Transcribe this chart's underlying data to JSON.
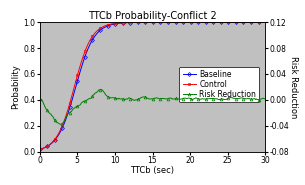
{
  "title": "TTCb Probability-Conflict 2",
  "xlabel": "TTCb (sec)",
  "ylabel_left": "Probability",
  "ylabel_right": "Risk Reduction",
  "xlim": [
    0,
    30
  ],
  "ylim_left": [
    0.0,
    1.0
  ],
  "ylim_right": [
    -0.08,
    0.12
  ],
  "yticks_left": [
    0.0,
    0.2,
    0.4,
    0.6,
    0.8,
    1.0
  ],
  "yticks_right": [
    -0.08,
    -0.04,
    0.0,
    0.04,
    0.08,
    0.12
  ],
  "xticks": [
    0,
    5,
    10,
    15,
    20,
    25,
    30
  ],
  "fig_bg_color": "#ffffff",
  "plot_bg_color": "#c0c0c0",
  "line_baseline_color": "#0000ff",
  "line_control_color": "#ff0000",
  "line_rr_color": "#008000",
  "legend_labels": [
    "Baseline",
    "Control",
    "Risk Reduction"
  ],
  "title_fontsize": 7,
  "label_fontsize": 6,
  "tick_fontsize": 5.5,
  "legend_fontsize": 5.5
}
